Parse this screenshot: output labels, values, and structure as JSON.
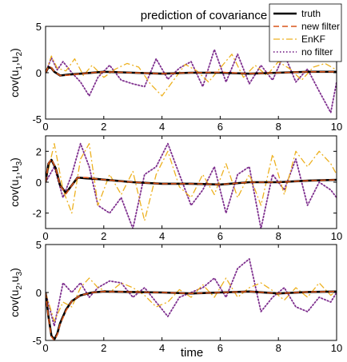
{
  "chart_data": [
    {
      "type": "line",
      "title": "prediction of covariance",
      "ylabel": "cov(u1,u2)",
      "xlim": [
        0,
        10
      ],
      "ylim": [
        -5,
        5
      ],
      "xticks": [
        "0",
        "2",
        "4",
        "6",
        "8",
        "10"
      ],
      "yticks": [
        "-5",
        "0",
        "5"
      ],
      "series": [
        {
          "name": "truth",
          "color": "#000000",
          "style": "solid",
          "x": [
            0,
            0.1,
            0.2,
            0.3,
            0.5,
            0.8,
            1.2,
            2,
            3,
            4,
            5,
            6,
            7,
            8,
            9,
            10
          ],
          "values": [
            0,
            0.6,
            0.5,
            0.1,
            -0.3,
            -0.2,
            -0.1,
            0.1,
            0,
            -0.1,
            0,
            0,
            -0.1,
            0,
            0.1,
            0.1
          ]
        },
        {
          "name": "new filter",
          "color": "#d95319",
          "style": "dashed",
          "x": [
            0,
            0.1,
            0.2,
            0.3,
            0.5,
            0.8,
            1.2,
            2,
            3,
            4,
            5,
            6,
            7,
            8,
            9,
            10
          ],
          "values": [
            0,
            0.65,
            0.55,
            0.1,
            -0.3,
            -0.25,
            -0.1,
            0.1,
            0,
            -0.1,
            0,
            0.05,
            -0.1,
            0,
            0.1,
            0.1
          ]
        },
        {
          "name": "EnKF",
          "color": "#edb120",
          "style": "dashdot",
          "x": [
            0,
            0.2,
            0.4,
            0.7,
            1,
            1.3,
            1.6,
            2,
            2.4,
            2.8,
            3.2,
            3.6,
            4,
            4.4,
            4.8,
            5.2,
            5.6,
            6,
            6.4,
            6.8,
            7.2,
            7.6,
            8,
            8.4,
            8.8,
            9.2,
            9.6,
            10
          ],
          "values": [
            0,
            1.8,
            0.5,
            0.2,
            1.5,
            -0.3,
            0.8,
            -0.5,
            0.4,
            1.0,
            0.6,
            -1.2,
            -2.5,
            -0.8,
            0.9,
            0.2,
            -1.0,
            0.5,
            2.0,
            -0.5,
            0.8,
            -0.3,
            1.2,
            0.4,
            -0.8,
            0.6,
            1.0,
            0.3
          ]
        },
        {
          "name": "no filter",
          "color": "#7e2f8e",
          "style": "dotted",
          "x": [
            0,
            0.2,
            0.4,
            0.6,
            0.9,
            1.2,
            1.5,
            1.8,
            2.2,
            2.6,
            3,
            3.4,
            3.8,
            4.2,
            4.6,
            5,
            5.4,
            5.8,
            6.2,
            6.6,
            7,
            7.4,
            7.8,
            8.2,
            8.6,
            9,
            9.4,
            9.8,
            10
          ],
          "values": [
            0,
            1.6,
            0.3,
            1.2,
            0.0,
            -1.0,
            -2.5,
            -0.5,
            0.8,
            -0.8,
            -1.2,
            -1.5,
            1.5,
            -0.7,
            0.5,
            1.2,
            -1.5,
            2.5,
            -1.0,
            2.0,
            -1.2,
            0.8,
            -0.8,
            2.0,
            -1.0,
            0.4,
            -2.0,
            -4.3,
            -1.0
          ]
        }
      ]
    },
    {
      "type": "line",
      "ylabel": "cov(u1,u3)",
      "xlim": [
        0,
        10
      ],
      "ylim": [
        -3,
        3
      ],
      "xticks": [
        "0",
        "2",
        "4",
        "6",
        "8",
        "10"
      ],
      "yticks": [
        "-2",
        "0",
        "2"
      ],
      "series": [
        {
          "name": "truth",
          "color": "#000000",
          "style": "solid",
          "x": [
            0,
            0.1,
            0.2,
            0.35,
            0.5,
            0.7,
            0.9,
            1.1,
            1.4,
            1.8,
            2.4,
            3,
            4,
            5,
            6,
            7,
            8,
            9,
            10
          ],
          "values": [
            0,
            1.2,
            1.45,
            0.9,
            -0.2,
            -0.7,
            -0.2,
            0.3,
            0.25,
            0.2,
            0.1,
            0,
            -0.1,
            -0.1,
            -0.15,
            0,
            0,
            0.1,
            0.15
          ]
        },
        {
          "name": "new filter",
          "color": "#d95319",
          "style": "dashed",
          "x": [
            0,
            0.1,
            0.2,
            0.35,
            0.5,
            0.7,
            0.9,
            1.1,
            1.4,
            1.8,
            2.4,
            3,
            4,
            5,
            6,
            7,
            8,
            9,
            10
          ],
          "values": [
            0,
            1.2,
            1.5,
            0.9,
            -0.2,
            -0.75,
            -0.2,
            0.3,
            0.3,
            0.2,
            0.1,
            0,
            -0.1,
            -0.1,
            -0.15,
            0,
            0,
            0.1,
            0.15
          ]
        },
        {
          "name": "EnKF",
          "color": "#edb120",
          "style": "dashdot",
          "x": [
            0,
            0.3,
            0.6,
            0.9,
            1.2,
            1.5,
            1.8,
            2.2,
            2.6,
            3,
            3.4,
            3.8,
            4.2,
            4.6,
            5,
            5.4,
            5.8,
            6.2,
            6.6,
            7,
            7.4,
            7.8,
            8.2,
            8.6,
            9,
            9.4,
            9.8,
            10
          ],
          "values": [
            0,
            2.5,
            -0.5,
            -2.0,
            1.5,
            2.5,
            -1.5,
            0.5,
            -0.8,
            0.7,
            -2.5,
            0.5,
            2.0,
            -0.3,
            -1.0,
            0.5,
            -0.8,
            1.2,
            -1.0,
            0.5,
            -1.5,
            1.8,
            -0.8,
            2.0,
            1.0,
            2.0,
            1.2,
            0.5
          ]
        },
        {
          "name": "no filter",
          "color": "#7e2f8e",
          "style": "dotted",
          "x": [
            0,
            0.3,
            0.6,
            0.9,
            1.2,
            1.5,
            1.8,
            2.2,
            2.6,
            3,
            3.4,
            3.8,
            4.2,
            4.6,
            5,
            5.4,
            5.8,
            6.2,
            6.6,
            7,
            7.4,
            7.8,
            8.2,
            8.6,
            9,
            9.4,
            9.8,
            10
          ],
          "values": [
            0,
            1.0,
            -1.0,
            0.5,
            2.5,
            1.0,
            -1.5,
            -2.0,
            -1.0,
            -3.0,
            0.5,
            1.0,
            2.5,
            0.5,
            -1.5,
            -0.5,
            1.0,
            -2.0,
            0.5,
            1.0,
            -3.0,
            0.5,
            -0.5,
            1.5,
            -1.5,
            0.0,
            -0.5,
            -1.0
          ]
        }
      ]
    },
    {
      "type": "line",
      "ylabel": "cov(u2,u3)",
      "xlabel": "time",
      "xlim": [
        0,
        10
      ],
      "ylim": [
        -5,
        5
      ],
      "xticks": [
        "0",
        "2",
        "4",
        "6",
        "8",
        "10"
      ],
      "yticks": [
        "-5",
        "0",
        "5"
      ],
      "series": [
        {
          "name": "truth",
          "color": "#000000",
          "style": "solid",
          "x": [
            0,
            0.1,
            0.2,
            0.3,
            0.4,
            0.5,
            0.7,
            0.9,
            1.2,
            1.6,
            2,
            3,
            4,
            5,
            6,
            7,
            8,
            9,
            10
          ],
          "values": [
            0,
            -2.5,
            -4.5,
            -4.9,
            -4.3,
            -3.2,
            -1.8,
            -0.9,
            -0.3,
            0,
            0.1,
            0.05,
            0,
            -0.1,
            0,
            0.1,
            -0.1,
            0.05,
            0.1
          ]
        },
        {
          "name": "new filter",
          "color": "#d95319",
          "style": "dashed",
          "x": [
            0,
            0.1,
            0.2,
            0.3,
            0.4,
            0.5,
            0.7,
            0.9,
            1.2,
            1.6,
            2,
            3,
            4,
            5,
            6,
            7,
            8,
            9,
            10
          ],
          "values": [
            0,
            -2.6,
            -4.6,
            -5.0,
            -4.4,
            -3.3,
            -1.9,
            -0.9,
            -0.3,
            0,
            0.1,
            0.05,
            0,
            -0.1,
            0,
            0.1,
            -0.1,
            0.05,
            0.1
          ]
        },
        {
          "name": "EnKF",
          "color": "#edb120",
          "style": "dashdot",
          "x": [
            0,
            0.3,
            0.6,
            0.9,
            1.2,
            1.5,
            1.8,
            2.2,
            2.6,
            3,
            3.4,
            3.8,
            4.2,
            4.6,
            5,
            5.4,
            5.8,
            6.2,
            6.6,
            7,
            7.4,
            7.8,
            8.2,
            8.6,
            9,
            9.4,
            9.8,
            10
          ],
          "values": [
            0,
            -3.0,
            -1.0,
            -1.5,
            0.5,
            1.5,
            0.5,
            0.0,
            1.0,
            0.5,
            -0.3,
            -1.5,
            -1.0,
            0.3,
            -0.5,
            0.8,
            -0.5,
            1.5,
            -0.5,
            0.5,
            1.0,
            0.2,
            -0.8,
            0.5,
            -0.5,
            1.0,
            -0.3,
            0.2
          ]
        },
        {
          "name": "no filter",
          "color": "#7e2f8e",
          "style": "dotted",
          "x": [
            0,
            0.3,
            0.6,
            0.9,
            1.2,
            1.5,
            1.8,
            2.2,
            2.6,
            3,
            3.4,
            3.8,
            4.2,
            4.6,
            5,
            5.4,
            5.8,
            6.2,
            6.6,
            7,
            7.4,
            7.8,
            8.2,
            8.6,
            9,
            9.4,
            9.8,
            10
          ],
          "values": [
            0,
            -3.5,
            1.0,
            0.0,
            1.0,
            -0.5,
            0.5,
            1.2,
            1.0,
            -0.5,
            0.5,
            -1.0,
            -2.5,
            -0.5,
            0.0,
            0.5,
            1.5,
            -0.5,
            2.5,
            3.5,
            -2.0,
            -0.5,
            0.5,
            -1.5,
            -2.0,
            -0.5,
            -1.0,
            0.0
          ]
        }
      ]
    }
  ],
  "legend": {
    "items": [
      {
        "label": "truth",
        "color": "#000000",
        "style": "solid"
      },
      {
        "label": "new filter",
        "color": "#d95319",
        "style": "dashed"
      },
      {
        "label": "EnKF",
        "color": "#edb120",
        "style": "dashdot"
      },
      {
        "label": "no filter",
        "color": "#7e2f8e",
        "style": "dotted"
      }
    ]
  }
}
